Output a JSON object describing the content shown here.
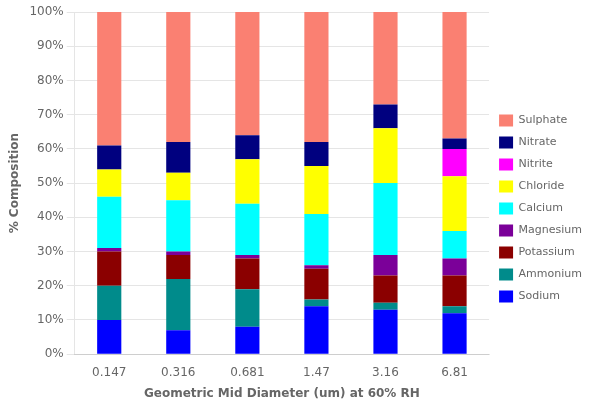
{
  "chart_data": {
    "type": "bar",
    "stacked": true,
    "xlabel": "Geometric Mid Diameter (um) at 60% RH",
    "ylabel": "% Composition",
    "categories": [
      "0.147",
      "0.316",
      "0.681",
      "1.47",
      "3.16",
      "6.81"
    ],
    "series": [
      {
        "name": "Sodium",
        "color": "#0000FF",
        "values": [
          10,
          7,
          8,
          14,
          13,
          12
        ]
      },
      {
        "name": "Ammonium",
        "color": "#008B8B",
        "values": [
          10,
          15,
          11,
          2,
          2,
          2
        ]
      },
      {
        "name": "Potassium",
        "color": "#8B0000",
        "values": [
          10,
          7,
          9,
          9,
          8,
          9
        ]
      },
      {
        "name": "Magnesium",
        "color": "#7B0099",
        "values": [
          1,
          1,
          1,
          1,
          6,
          5
        ]
      },
      {
        "name": "Calcium",
        "color": "#00FFFF",
        "values": [
          15,
          15,
          15,
          15,
          21,
          8
        ]
      },
      {
        "name": "Chloride",
        "color": "#FFFF00",
        "values": [
          8,
          8,
          13,
          14,
          16,
          16
        ]
      },
      {
        "name": "Nitrite",
        "color": "#FF00FF",
        "values": [
          0,
          0,
          0,
          0,
          0,
          8
        ]
      },
      {
        "name": "Nitrate",
        "color": "#00007F",
        "values": [
          7,
          9,
          7,
          7,
          7,
          3
        ]
      },
      {
        "name": "Sulphate",
        "color": "#FA8072",
        "values": [
          39,
          38,
          36,
          38,
          27,
          37
        ]
      }
    ],
    "ylim": [
      0,
      100
    ],
    "yticks": [
      {
        "value": 0,
        "label": "0%"
      },
      {
        "value": 10,
        "label": "10%"
      },
      {
        "value": 20,
        "label": "20%"
      },
      {
        "value": 30,
        "label": "30%"
      },
      {
        "value": 40,
        "label": "40%"
      },
      {
        "value": 50,
        "label": "50%"
      },
      {
        "value": 60,
        "label": "60%"
      },
      {
        "value": 70,
        "label": "70%"
      },
      {
        "value": 80,
        "label": "80%"
      },
      {
        "value": 90,
        "label": "90%"
      },
      {
        "value": 100,
        "label": "100%"
      }
    ],
    "grid": true,
    "legend": "right"
  }
}
